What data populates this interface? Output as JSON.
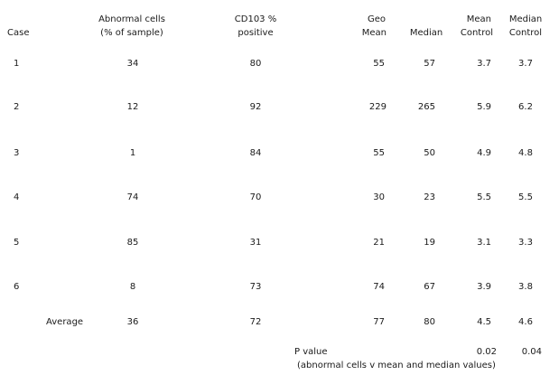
{
  "headers": {
    "case": "Case",
    "abnormal_line1": "Abnormal cells",
    "abnormal_line2": "(% of sample)",
    "cd103_line1": "CD103 %",
    "cd103_line2": "positive",
    "geo_line1": "Geo",
    "geo_line2": "Mean",
    "median": "Median",
    "mean_control_line1": "Mean",
    "mean_control_line2": "Control",
    "median_control_line1": "Median",
    "median_control_line2": "Control"
  },
  "rows": [
    {
      "case": "1",
      "abnormal": "34",
      "cd103": "80",
      "geo_mean": "55",
      "median": "57",
      "mean_control": "3.7",
      "median_control": "3.7"
    },
    {
      "case": "2",
      "abnormal": "12",
      "cd103": "92",
      "geo_mean": "229",
      "median": "265",
      "mean_control": "5.9",
      "median_control": "6.2"
    },
    {
      "case": "3",
      "abnormal": "1",
      "cd103": "84",
      "geo_mean": "55",
      "median": "50",
      "mean_control": "4.9",
      "median_control": "4.8"
    },
    {
      "case": "4",
      "abnormal": "74",
      "cd103": "70",
      "geo_mean": "30",
      "median": "23",
      "mean_control": "5.5",
      "median_control": "5.5"
    },
    {
      "case": "5",
      "abnormal": "85",
      "cd103": "31",
      "geo_mean": "21",
      "median": "19",
      "mean_control": "3.1",
      "median_control": "3.3"
    },
    {
      "case": "6",
      "abnormal": "8",
      "cd103": "73",
      "geo_mean": "74",
      "median": "67",
      "mean_control": "3.9",
      "median_control": "3.8"
    }
  ],
  "average": {
    "label": "Average",
    "abnormal": "36",
    "cd103": "72",
    "geo_mean": "77",
    "median": "80",
    "mean_control": "4.5",
    "median_control": "4.6"
  },
  "pvalue": {
    "label": "P value",
    "mean_value": "0.02",
    "median_value": "0.04",
    "note": "(abnormal cells v mean and median values)"
  }
}
